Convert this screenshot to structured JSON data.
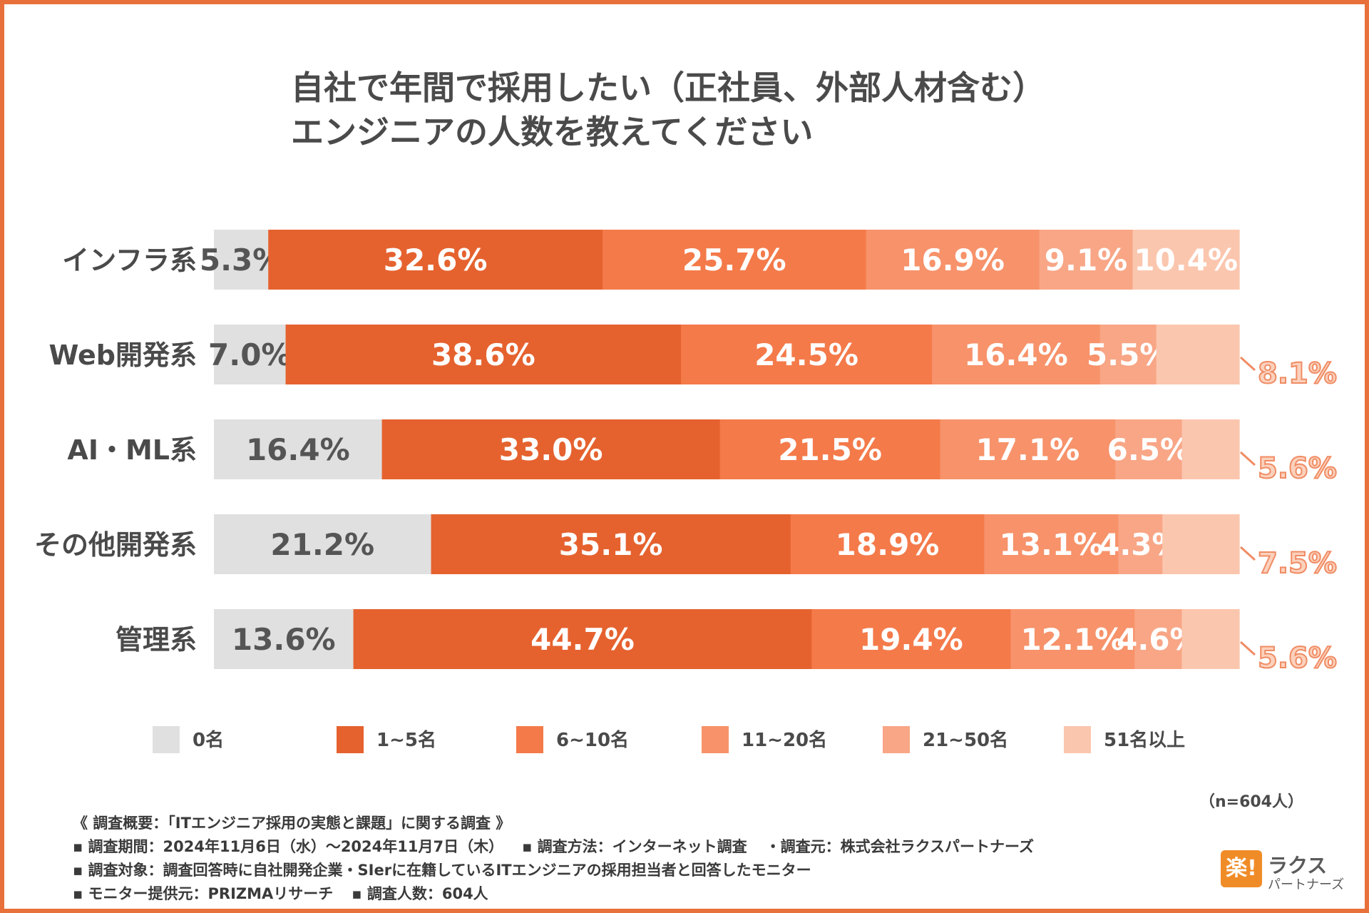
{
  "chart_data": {
    "type": "bar",
    "orientation": "horizontal",
    "stacked": true,
    "percent": true,
    "title": "自社で年間で採用したい（正社員、外部人材含む）エンジニアの人数を教えてください",
    "title_lines": [
      "自社で年間で採用したい（正社員、外部人材含む）",
      "エンジニアの人数を教えてください"
    ],
    "categories": [
      "インフラ系",
      "Web開発系",
      "AI・ML系",
      "その他開発系",
      "管理系"
    ],
    "series": [
      {
        "name": "0名",
        "color": "#e0e0e0",
        "text_color": "#555555",
        "values": [
          5.3,
          7.0,
          16.4,
          21.2,
          13.6
        ],
        "labels": [
          "5.3%",
          "7.0%",
          "16.4%",
          "21.2%",
          "13.6%"
        ]
      },
      {
        "name": "1~5名",
        "color": "#e5622f",
        "text_color": "#ffffff",
        "values": [
          32.6,
          38.6,
          33.0,
          35.1,
          44.7
        ],
        "labels": [
          "32.6%",
          "38.6%",
          "33.0%",
          "35.1%",
          "44.7%"
        ]
      },
      {
        "name": "6~10名",
        "color": "#f47a4a",
        "text_color": "#ffffff",
        "values": [
          25.7,
          24.5,
          21.5,
          18.9,
          19.4
        ],
        "labels": [
          "25.7%",
          "24.5%",
          "21.5%",
          "18.9%",
          "19.4%"
        ]
      },
      {
        "name": "11~20名",
        "color": "#f7926a",
        "text_color": "#ffffff",
        "values": [
          16.9,
          16.4,
          17.1,
          13.1,
          12.1
        ],
        "labels": [
          "16.9%",
          "16.4%",
          "17.1%",
          "13.1%",
          "12.1%"
        ]
      },
      {
        "name": "21~50名",
        "color": "#f8a686",
        "text_color": "#ffffff",
        "values": [
          9.1,
          5.5,
          6.5,
          4.3,
          4.6
        ],
        "labels": [
          "9.1%",
          "5.5%",
          "6.5%",
          "4.3%",
          "4.6%"
        ]
      },
      {
        "name": "51名以上",
        "color": "#fbc6ae",
        "text_color": "#ffffff",
        "values": [
          10.4,
          8.1,
          5.6,
          7.5,
          5.6
        ],
        "labels": [
          "10.4%",
          "8.1%",
          "5.6%",
          "7.5%",
          "5.6%"
        ],
        "outside_label": [
          false,
          true,
          true,
          true,
          true
        ]
      }
    ],
    "legend_position": "bottom",
    "xlim": [
      0,
      100
    ]
  },
  "sample_note": "（n=604人）",
  "footer": {
    "survey_title": "《 調査概要：「ITエンジニア採用の実態と課題」に関する調査 》",
    "period": "▪ 調査期間：2024年11月6日（水）～2024年11月7日（木）",
    "method": "▪ 調査方法：インターネット調査",
    "source": "・調査元：株式会社ラクスパートナーズ",
    "target": "▪ 調査対象：調査回答時に自社開発企業・SIerに在籍しているITエンジニアの採用担当者と回答したモニター",
    "provider": "▪ モニター提供元：PRIZMAリサーチ",
    "respondents": "▪ 調査人数：604人"
  },
  "logo": {
    "mark": "楽!",
    "name": "ラクス",
    "sub": "パートナーズ"
  }
}
